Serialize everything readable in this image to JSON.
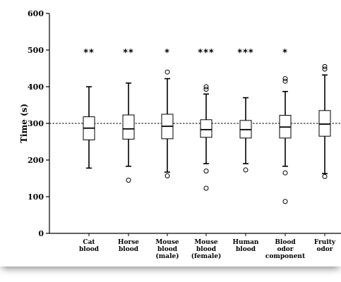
{
  "chart_data": {
    "type": "box",
    "ylabel": "Time (s)",
    "xlabel": "",
    "ylim": [
      0,
      600
    ],
    "yticks": [
      0,
      100,
      200,
      300,
      400,
      500,
      600
    ],
    "reference_line": 300,
    "categories": [
      [
        "Cat",
        "blood"
      ],
      [
        "Horse",
        "blood"
      ],
      [
        "Mouse",
        "blood",
        "(male)"
      ],
      [
        "Mouse",
        "blood",
        "(female)"
      ],
      [
        "Human",
        "blood"
      ],
      [
        "Blood",
        "odor",
        "component"
      ],
      [
        "Fruity",
        "odor"
      ]
    ],
    "significance": [
      "**",
      "**",
      "*",
      "***",
      "***",
      "*",
      ""
    ],
    "boxes": [
      {
        "whisker_low": 178,
        "q1": 255,
        "median": 287,
        "q3": 318,
        "whisker_high": 400,
        "outliers": []
      },
      {
        "whisker_low": 183,
        "q1": 257,
        "median": 285,
        "q3": 323,
        "whisker_high": 410,
        "outliers": [
          145
        ]
      },
      {
        "whisker_low": 167,
        "q1": 258,
        "median": 292,
        "q3": 325,
        "whisker_high": 422,
        "outliers": [
          157,
          440
        ]
      },
      {
        "whisker_low": 190,
        "q1": 262,
        "median": 283,
        "q3": 310,
        "whisker_high": 380,
        "outliers": [
          123,
          170,
          393,
          400
        ]
      },
      {
        "whisker_low": 190,
        "q1": 260,
        "median": 283,
        "q3": 308,
        "whisker_high": 370,
        "outliers": [
          173
        ]
      },
      {
        "whisker_low": 183,
        "q1": 260,
        "median": 290,
        "q3": 322,
        "whisker_high": 387,
        "outliers": [
          87,
          165,
          415,
          422
        ]
      },
      {
        "whisker_low": 163,
        "q1": 265,
        "median": 298,
        "q3": 335,
        "whisker_high": 432,
        "outliers": [
          155,
          448,
          455
        ]
      }
    ]
  }
}
